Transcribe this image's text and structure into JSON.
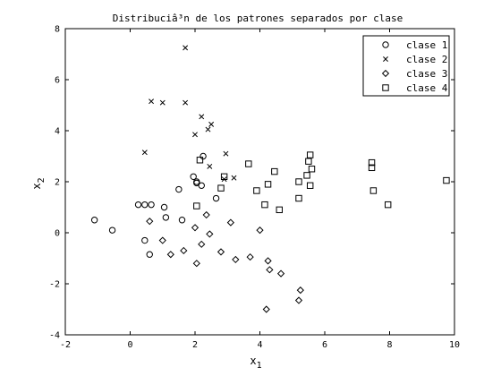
{
  "chart_data": {
    "type": "scatter",
    "title": "Distribuciâ³n de los patrones separados por clase",
    "xlabel": {
      "base": "x",
      "sub": "1"
    },
    "ylabel": {
      "base": "x",
      "sub": "2"
    },
    "xlim": [
      -2,
      10
    ],
    "ylim": [
      -4,
      8
    ],
    "xticks": [
      -2,
      0,
      2,
      4,
      6,
      8,
      10
    ],
    "yticks": [
      -4,
      -2,
      0,
      2,
      4,
      6,
      8
    ],
    "grid": false,
    "legend_position": "top-right",
    "series": [
      {
        "name": "clase 1",
        "marker": "circle",
        "points": [
          [
            -1.1,
            0.5
          ],
          [
            -0.55,
            0.1
          ],
          [
            0.25,
            1.1
          ],
          [
            0.45,
            1.1
          ],
          [
            0.65,
            1.1
          ],
          [
            1.05,
            1.0
          ],
          [
            0.45,
            -0.3
          ],
          [
            0.6,
            -0.85
          ],
          [
            1.1,
            0.6
          ],
          [
            1.6,
            0.5
          ],
          [
            1.5,
            1.7
          ],
          [
            1.95,
            2.2
          ],
          [
            2.05,
            2.0
          ],
          [
            2.05,
            1.95
          ],
          [
            2.25,
            3.0
          ],
          [
            2.65,
            1.35
          ],
          [
            2.2,
            1.85
          ]
        ]
      },
      {
        "name": "clase 2",
        "marker": "x",
        "points": [
          [
            0.45,
            3.15
          ],
          [
            0.65,
            5.15
          ],
          [
            1.0,
            5.1
          ],
          [
            1.7,
            5.1
          ],
          [
            1.7,
            7.25
          ],
          [
            2.0,
            3.85
          ],
          [
            2.2,
            4.55
          ],
          [
            2.4,
            4.05
          ],
          [
            2.5,
            4.25
          ],
          [
            2.45,
            2.6
          ],
          [
            2.95,
            3.1
          ],
          [
            3.2,
            2.15
          ],
          [
            2.9,
            2.1
          ]
        ]
      },
      {
        "name": "clase 3",
        "marker": "diamond",
        "points": [
          [
            0.6,
            0.45
          ],
          [
            1.0,
            -0.3
          ],
          [
            1.25,
            -0.85
          ],
          [
            1.65,
            -0.7
          ],
          [
            2.0,
            0.2
          ],
          [
            2.05,
            -1.2
          ],
          [
            2.2,
            -0.45
          ],
          [
            2.45,
            -0.05
          ],
          [
            2.35,
            0.7
          ],
          [
            2.8,
            -0.75
          ],
          [
            3.1,
            0.4
          ],
          [
            3.25,
            -1.05
          ],
          [
            3.7,
            -0.95
          ],
          [
            4.0,
            0.1
          ],
          [
            4.25,
            -1.1
          ],
          [
            4.3,
            -1.45
          ],
          [
            4.65,
            -1.6
          ],
          [
            5.25,
            -2.25
          ],
          [
            5.2,
            -2.65
          ],
          [
            4.2,
            -3.0
          ]
        ]
      },
      {
        "name": "clase 4",
        "marker": "square",
        "points": [
          [
            2.05,
            1.05
          ],
          [
            2.15,
            2.85
          ],
          [
            2.8,
            1.75
          ],
          [
            2.9,
            2.2
          ],
          [
            3.65,
            2.7
          ],
          [
            3.9,
            1.65
          ],
          [
            4.15,
            1.1
          ],
          [
            4.25,
            1.9
          ],
          [
            4.45,
            2.4
          ],
          [
            4.6,
            0.9
          ],
          [
            5.2,
            2.0
          ],
          [
            5.2,
            1.35
          ],
          [
            5.45,
            2.25
          ],
          [
            5.5,
            2.8
          ],
          [
            5.55,
            3.05
          ],
          [
            5.55,
            1.85
          ],
          [
            5.6,
            2.5
          ],
          [
            7.45,
            2.75
          ],
          [
            7.45,
            2.55
          ],
          [
            7.5,
            1.65
          ],
          [
            7.95,
            1.1
          ],
          [
            9.75,
            2.05
          ]
        ]
      }
    ]
  }
}
